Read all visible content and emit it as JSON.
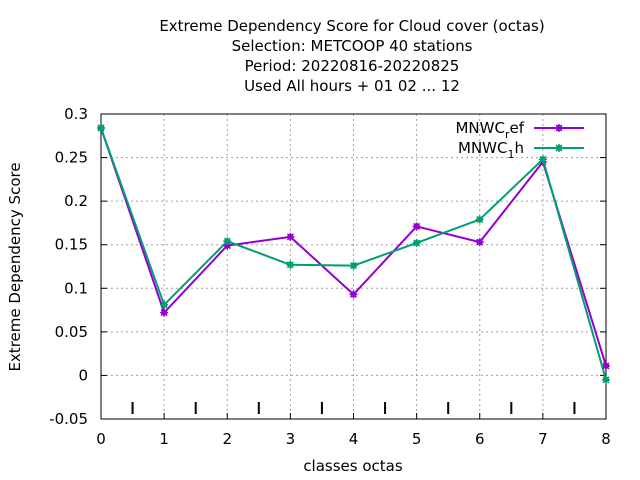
{
  "chart_data": {
    "type": "line",
    "title_lines": [
      "Extreme Dependency Score  for Cloud cover (octas)",
      "Selection: METCOOP     40 stations",
      "Period: 20220816-20220825",
      "Used  All hours + 01 02 ... 12"
    ],
    "xlabel": "classes octas",
    "ylabel": "Extreme Dependency Score",
    "x": [
      0,
      1,
      2,
      3,
      4,
      5,
      6,
      7,
      8
    ],
    "xlim": [
      0,
      8
    ],
    "ylim": [
      -0.05,
      0.3
    ],
    "xticks": [
      "0",
      "1",
      "2",
      "3",
      "4",
      "5",
      "6",
      "7",
      "8"
    ],
    "yticks": [
      "-0.05",
      "0",
      "0.05",
      "0.1",
      "0.15",
      "0.2",
      "0.25",
      "0.3"
    ],
    "grid": true,
    "legend_position": "top-right",
    "series": [
      {
        "name": "MNWC_ref",
        "legend_parts": [
          "MNWC",
          "r",
          "ef"
        ],
        "color": "#9400d3",
        "values": [
          0.284,
          0.072,
          0.149,
          0.159,
          0.093,
          0.171,
          0.153,
          0.245,
          0.011
        ]
      },
      {
        "name": "MNWC_1h",
        "legend_parts": [
          "MNWC",
          "1",
          "h"
        ],
        "color": "#009e73",
        "values": [
          0.284,
          0.081,
          0.154,
          0.127,
          0.126,
          0.152,
          0.179,
          0.248,
          -0.005
        ]
      }
    ]
  }
}
